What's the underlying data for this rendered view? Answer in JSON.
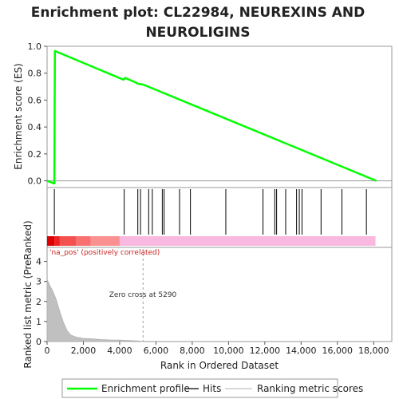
{
  "chart_data": {
    "type": "line",
    "title": "Enrichment plot: CL22984, NEUREXINS AND NEUROLIGINS",
    "title_lines": [
      "Enrichment plot: CL22984, NEUREXINS AND",
      "NEUROLIGINS"
    ],
    "top_panel": {
      "ylabel": "Enrichment score (ES)",
      "ylim": [
        -0.05,
        1.0
      ],
      "yticks": [
        0.0,
        0.2,
        0.4,
        0.6,
        0.8,
        1.0
      ],
      "ytick_labels": [
        "0.0",
        "0.2",
        "0.4",
        "0.6",
        "0.8",
        "1.0"
      ],
      "series": [
        {
          "name": "Enrichment profile",
          "color": "#00ff00",
          "x": [
            0,
            400,
            430,
            4150,
            4220,
            4300,
            4900,
            5000,
            5300,
            18150
          ],
          "y": [
            0.0,
            -0.02,
            0.965,
            0.755,
            0.752,
            0.765,
            0.73,
            0.722,
            0.715,
            0.0
          ]
        }
      ]
    },
    "hits_panel": {
      "hit_positions": [
        400,
        4250,
        5000,
        5150,
        5600,
        5800,
        6350,
        6450,
        7300,
        7900,
        9850,
        11900,
        12550,
        12650,
        13150,
        13750,
        13900,
        14050,
        15100,
        16250,
        17600
      ]
    },
    "rank_bar": {
      "positive_label": "'na_pos' (positively correlated)",
      "positive_color": "#cc0000"
    },
    "bottom_panel": {
      "ylabel": "Ranked list metric (PreRanked)",
      "ylim": [
        0,
        4.7
      ],
      "yticks": [
        0,
        1,
        2,
        3,
        4
      ],
      "ytick_labels": [
        "0",
        "1",
        "2",
        "3",
        "4"
      ],
      "zero_cross_label": "Zero cross at 5290",
      "zero_cross": 5290,
      "metric_x": [
        0,
        150,
        300,
        500,
        700,
        900,
        1100,
        1300,
        1600,
        2000,
        2500,
        3000,
        3500,
        4000,
        4500,
        5000,
        5290
      ],
      "metric_y": [
        3.1,
        2.8,
        2.55,
        2.1,
        1.5,
        0.95,
        0.55,
        0.33,
        0.22,
        0.16,
        0.13,
        0.1,
        0.08,
        0.07,
        0.05,
        0.03,
        0.0
      ]
    },
    "xlabel": "Rank in Ordered Dataset",
    "xlim": [
      0,
      19000
    ],
    "xticks": [
      0,
      2000,
      4000,
      6000,
      8000,
      10000,
      12000,
      14000,
      16000,
      18000
    ],
    "xtick_labels": [
      "0",
      "2,000",
      "4,000",
      "6,000",
      "8,000",
      "10,000",
      "12,000",
      "14,000",
      "16,000",
      "18,000"
    ],
    "legend": {
      "placement": "bottom",
      "entries": [
        {
          "label": "Enrichment profile",
          "color": "#00ff00"
        },
        {
          "label": "Hits",
          "color": "#000000"
        },
        {
          "label": "Ranking metric scores",
          "color": "#c0c0c0"
        }
      ]
    }
  }
}
